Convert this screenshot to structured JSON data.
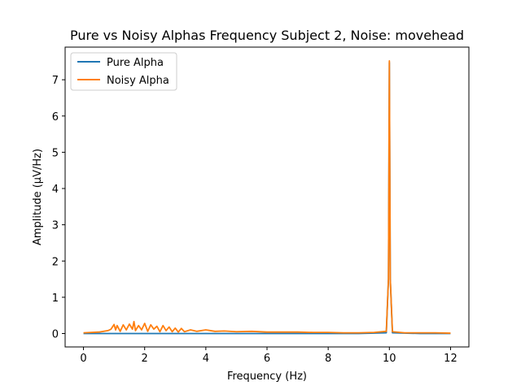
{
  "chart_data": {
    "type": "line",
    "title": "Pure vs Noisy Alphas Frequency Subject 2, Noise: movehead",
    "xlabel": "Frequency (Hz)",
    "ylabel": "Amplitude (μV/Hz)",
    "xlim": [
      -0.6,
      12.6
    ],
    "ylim": [
      -0.37,
      7.9
    ],
    "xticks": [
      0,
      2,
      4,
      6,
      8,
      10,
      12
    ],
    "yticks": [
      0,
      1,
      2,
      3,
      4,
      5,
      6,
      7
    ],
    "xtick_labels": [
      "0",
      "2",
      "4",
      "6",
      "8",
      "10",
      "12"
    ],
    "ytick_labels": [
      "0",
      "1",
      "2",
      "3",
      "4",
      "5",
      "6",
      "7"
    ],
    "grid": false,
    "legend_position": "top-left",
    "series": [
      {
        "name": "Pure Alpha",
        "color": "#1f77b4",
        "x": [
          0,
          1,
          2,
          3,
          4,
          5,
          6,
          7,
          8,
          9,
          9.9,
          9.97,
          10,
          10.03,
          10.1,
          11,
          12
        ],
        "y": [
          0.0,
          0.0,
          0.0,
          0.0,
          0.0,
          0.0,
          0.0,
          0.0,
          0.0,
          0.0,
          0.02,
          1.5,
          7.48,
          1.5,
          0.02,
          0.0,
          0.0
        ]
      },
      {
        "name": "Noisy Alpha",
        "color": "#ff7f0e",
        "x": [
          0,
          0.5,
          0.8,
          0.9,
          1.0,
          1.05,
          1.1,
          1.2,
          1.3,
          1.4,
          1.5,
          1.6,
          1.65,
          1.7,
          1.8,
          1.9,
          2.0,
          2.1,
          2.2,
          2.3,
          2.4,
          2.5,
          2.6,
          2.7,
          2.8,
          2.9,
          3.0,
          3.1,
          3.2,
          3.3,
          3.5,
          3.7,
          4.0,
          4.3,
          4.6,
          5.0,
          5.5,
          6.0,
          6.5,
          7.0,
          7.5,
          8.0,
          8.5,
          9.0,
          9.5,
          9.9,
          9.97,
          10,
          10.03,
          10.1,
          10.5,
          11,
          11.5,
          12
        ],
        "y": [
          0.02,
          0.04,
          0.08,
          0.12,
          0.25,
          0.1,
          0.22,
          0.06,
          0.24,
          0.1,
          0.26,
          0.12,
          0.33,
          0.08,
          0.22,
          0.1,
          0.28,
          0.06,
          0.24,
          0.12,
          0.2,
          0.05,
          0.22,
          0.08,
          0.18,
          0.05,
          0.15,
          0.04,
          0.14,
          0.05,
          0.1,
          0.06,
          0.1,
          0.06,
          0.07,
          0.05,
          0.06,
          0.04,
          0.04,
          0.04,
          0.03,
          0.03,
          0.02,
          0.02,
          0.03,
          0.06,
          1.5,
          7.52,
          1.5,
          0.05,
          0.02,
          0.02,
          0.02,
          0.01
        ]
      }
    ]
  }
}
